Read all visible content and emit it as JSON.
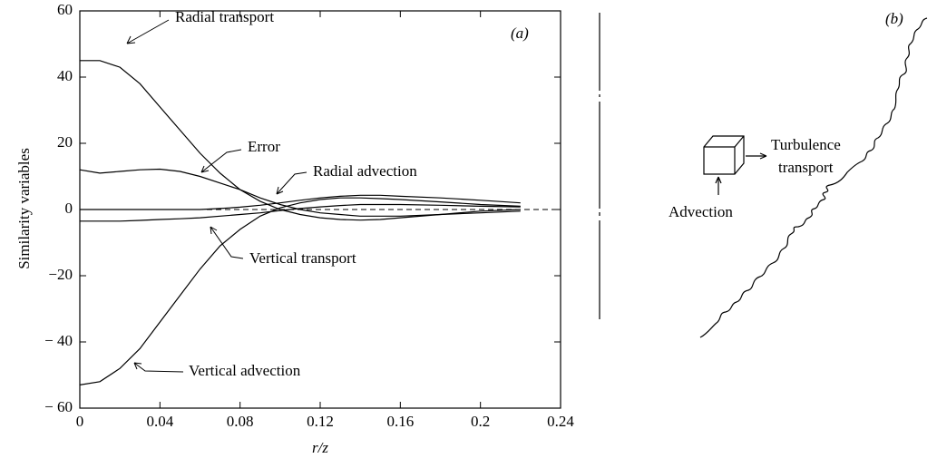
{
  "chart_data": {
    "type": "line",
    "panel_label": "(a)",
    "x_label": "r/z",
    "y_label": "Similarity variables",
    "x": [
      0,
      0.01,
      0.02,
      0.03,
      0.04,
      0.05,
      0.06,
      0.07,
      0.08,
      0.09,
      0.1,
      0.11,
      0.12,
      0.13,
      0.14,
      0.15,
      0.16,
      0.18,
      0.2,
      0.22
    ],
    "series": [
      {
        "name": "Radial transport",
        "color": "#000000",
        "values": [
          45,
          45,
          43,
          38,
          31,
          24,
          17,
          11,
          6,
          2.5,
          0,
          -1.5,
          -2.5,
          -3,
          -3.2,
          -3,
          -2.5,
          -1.5,
          -0.5,
          0
        ]
      },
      {
        "name": "Error",
        "color": "#000000",
        "values": [
          12,
          11,
          11.5,
          12,
          12.2,
          11.5,
          10,
          8,
          6,
          3.5,
          1.5,
          0,
          -1,
          -1.5,
          -2,
          -2,
          -2,
          -1.5,
          -1,
          -0.5
        ]
      },
      {
        "name": "Radial advection",
        "color": "#000000",
        "values": [
          0,
          0,
          0,
          0,
          0,
          0,
          0,
          0.3,
          0.7,
          1.3,
          2,
          2.8,
          3.5,
          4,
          4.3,
          4.3,
          4,
          3.5,
          2.8,
          2
        ]
      },
      {
        "name": "Vertical transport",
        "color": "#000000",
        "values": [
          -3.5,
          -3.5,
          -3.5,
          -3.3,
          -3,
          -2.8,
          -2.5,
          -2,
          -1.5,
          -1,
          -0.3,
          0.3,
          0.8,
          1.2,
          1.5,
          1.5,
          1.5,
          1.3,
          1,
          0.8
        ]
      },
      {
        "name": "Vertical advection",
        "color": "#000000",
        "values": [
          -53,
          -52,
          -48,
          -42,
          -34,
          -26,
          -18,
          -11,
          -6,
          -2,
          0.5,
          2,
          3,
          3.5,
          3.5,
          3.3,
          3,
          2.3,
          1.5,
          1
        ]
      }
    ],
    "xlim": [
      0,
      0.24
    ],
    "xticks": [
      0,
      0.04,
      0.08,
      0.12,
      0.16,
      0.2,
      0.24
    ],
    "ylim": [
      -60,
      60
    ],
    "yticks": [
      {
        "value": -60,
        "label": "− 60"
      },
      {
        "value": -40,
        "label": "− 40"
      },
      {
        "value": -20,
        "label": "−20"
      },
      0,
      20,
      40,
      60
    ],
    "zero_line": true
  },
  "diagram": {
    "panel_label": "(b)",
    "turbulence": "Turbulence",
    "transport": "transport",
    "advection": "Advection"
  }
}
